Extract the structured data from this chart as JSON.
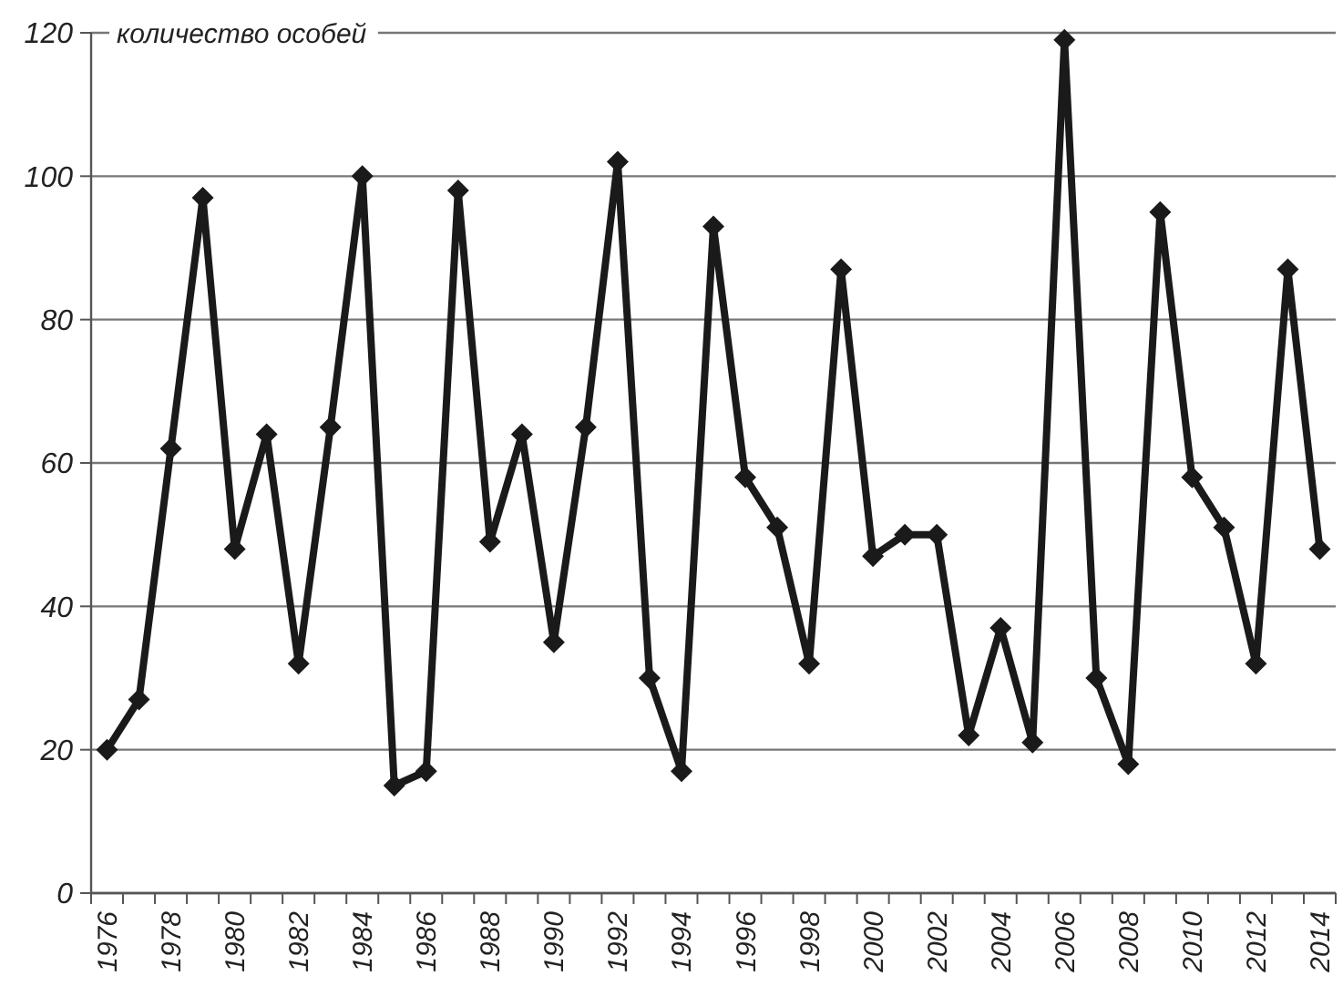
{
  "chart_data": {
    "type": "line",
    "ylabel": "количество особей",
    "categories": [
      "1976",
      null,
      "1978",
      null,
      "1980",
      null,
      "1982",
      null,
      "1984",
      null,
      "1986",
      null,
      "1988",
      null,
      "1990",
      null,
      "1992",
      null,
      "1994",
      null,
      "1996",
      null,
      "1998",
      null,
      "2000",
      null,
      "2002",
      null,
      "2004",
      null,
      "2006",
      null,
      "2008",
      null,
      "2010",
      null,
      "2012",
      null,
      "2014"
    ],
    "series": [
      {
        "color": "#1a1a1a",
        "values": [
          20,
          27,
          62,
          97,
          48,
          64,
          32,
          65,
          100,
          15,
          17,
          98,
          49,
          64,
          35,
          65,
          102,
          30,
          17,
          93,
          58,
          51,
          32,
          87,
          47,
          50,
          50,
          22,
          37,
          21,
          119,
          30,
          18,
          95,
          58,
          51,
          32,
          87,
          48
        ]
      }
    ],
    "ylim": [
      0,
      120
    ],
    "yticks": [
      0,
      20,
      40,
      60,
      80,
      100,
      120
    ],
    "grid": "y",
    "marker": "diamond",
    "line_style": "solid"
  }
}
